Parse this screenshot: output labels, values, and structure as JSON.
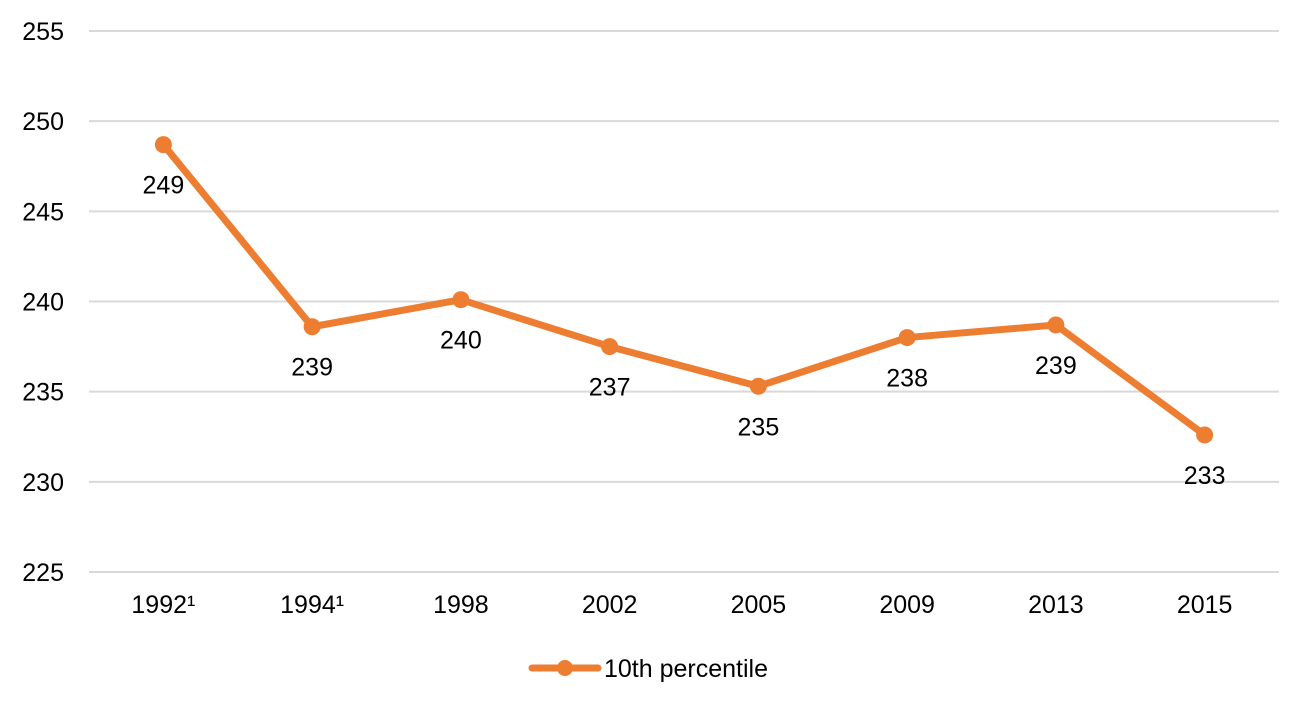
{
  "chart_data": {
    "type": "line",
    "title": "",
    "xlabel": "",
    "ylabel": "",
    "categories": [
      "1992¹",
      "1994¹",
      "1998",
      "2002",
      "2005",
      "2009",
      "2013",
      "2015"
    ],
    "ylim": [
      225,
      255
    ],
    "yticks": [
      225,
      230,
      235,
      240,
      245,
      250,
      255
    ],
    "grid": true,
    "legend_position": "bottom",
    "series": [
      {
        "name": "10th percentile",
        "color": "#ED7D31",
        "values": [
          248.7,
          238.6,
          240.1,
          237.5,
          235.3,
          238.0,
          238.7,
          232.6
        ],
        "data_labels": [
          "249",
          "239",
          "240",
          "237",
          "235",
          "238",
          "239",
          "233"
        ]
      }
    ]
  }
}
